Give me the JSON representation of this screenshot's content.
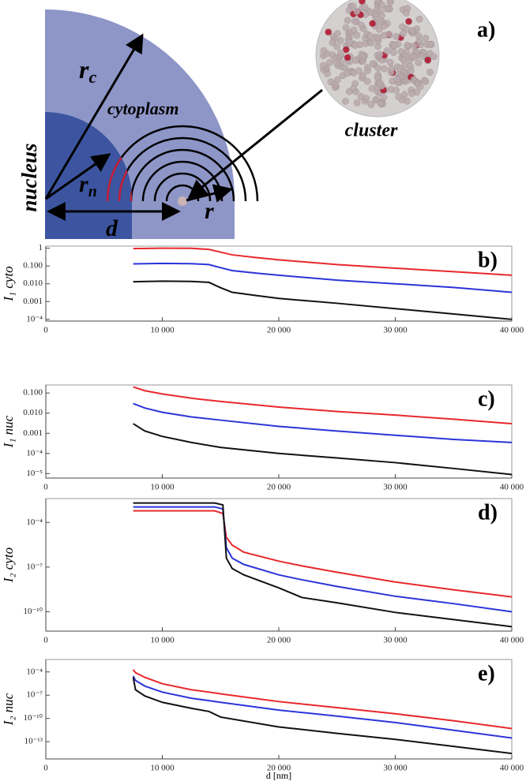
{
  "diagram": {
    "panel_label": "a)",
    "rc": {
      "text": "r",
      "sub": "c"
    },
    "cytoplasm": "cytoplasm",
    "nucleus": "nucleus",
    "rn": {
      "text": "r",
      "sub": "n"
    },
    "d": "d",
    "r": "r",
    "cluster": "cluster"
  },
  "chart_data": [
    {
      "type": "line",
      "panel_label": "b)",
      "y_label": "I₁ cyto",
      "log_y": true,
      "x": [
        7500,
        10000,
        12500,
        14000,
        15000,
        16000,
        18000,
        20000,
        25000,
        30000,
        35000,
        40000
      ],
      "series": [
        {
          "color": "#e8282b",
          "values": [
            0.95,
            1.0,
            0.98,
            0.85,
            0.6,
            0.42,
            0.3,
            0.22,
            0.12,
            0.075,
            0.048,
            0.03
          ]
        },
        {
          "color": "#2b35d8",
          "values": [
            0.13,
            0.14,
            0.135,
            0.12,
            0.08,
            0.055,
            0.04,
            0.03,
            0.016,
            0.01,
            0.0062,
            0.0033
          ]
        },
        {
          "color": "#111111",
          "values": [
            0.013,
            0.014,
            0.0135,
            0.012,
            0.006,
            0.0033,
            0.0022,
            0.0015,
            0.0008,
            0.0004,
            0.0002,
            0.0001
          ]
        }
      ],
      "xlim": [
        0,
        40000
      ],
      "ylim": [
        8e-05,
        1.3
      ],
      "xticks": [
        0,
        {
          "value": 10000,
          "label": "10 000"
        },
        {
          "value": 20000,
          "label": "20 000"
        },
        {
          "value": 30000,
          "label": "30 000"
        },
        {
          "value": 40000,
          "label": "40 000"
        }
      ],
      "yticks": [
        1,
        {
          "value": 0.1,
          "label": "0.100"
        },
        {
          "value": 0.01,
          "label": "0.010"
        },
        0.001,
        {
          "value": 0.0001,
          "label": "10⁻⁴"
        }
      ]
    },
    {
      "type": "line",
      "panel_label": "c)",
      "y_label": "I₁ nuc",
      "log_y": true,
      "x": [
        7500,
        8500,
        10000,
        12500,
        15000,
        20000,
        25000,
        30000,
        35000,
        40000
      ],
      "series": [
        {
          "color": "#e8282b",
          "values": [
            0.2,
            0.13,
            0.09,
            0.055,
            0.038,
            0.02,
            0.012,
            0.008,
            0.005,
            0.003
          ]
        },
        {
          "color": "#2b35d8",
          "values": [
            0.03,
            0.018,
            0.011,
            0.0065,
            0.0045,
            0.0022,
            0.0013,
            0.0008,
            0.0005,
            0.00035
          ]
        },
        {
          "color": "#111111",
          "values": [
            0.003,
            0.0013,
            0.0007,
            0.00035,
            0.0002,
            0.0001,
            6e-05,
            3.5e-05,
            1.8e-05,
            9e-06
          ]
        }
      ],
      "xlim": [
        0,
        40000
      ],
      "ylim": [
        6e-06,
        0.25
      ],
      "xticks": [
        0,
        {
          "value": 10000,
          "label": "10 000"
        },
        {
          "value": 20000,
          "label": "20 000"
        },
        {
          "value": 30000,
          "label": "30 000"
        },
        {
          "value": 40000,
          "label": "40 000"
        }
      ],
      "yticks": [
        {
          "value": 0.1,
          "label": "0.100"
        },
        {
          "value": 0.01,
          "label": "0.010"
        },
        0.001,
        {
          "value": 0.0001,
          "label": "10⁻⁴"
        },
        {
          "value": 1e-05,
          "label": "10⁻⁵"
        }
      ]
    },
    {
      "type": "line",
      "panel_label": "d)",
      "y_label": "I₂ cyto",
      "log_y": true,
      "x": [
        7500,
        14500,
        15200,
        15500,
        16000,
        17000,
        20000,
        22000,
        25000,
        30000,
        35000,
        40000
      ],
      "series": [
        {
          "color": "#e8282b",
          "values": [
            0.0006,
            0.0006,
            0.0004,
            1e-05,
            3e-06,
            1e-06,
            2.5e-07,
            1.2e-07,
            4.5e-08,
            1e-08,
            3e-09,
            1e-09
          ]
        },
        {
          "color": "#2b35d8",
          "values": [
            0.0011,
            0.0011,
            0.0008,
            2e-06,
            4e-07,
            1.5e-07,
            3e-08,
            1.4e-08,
            5e-09,
            1.1e-09,
            3.5e-10,
            1e-10
          ]
        },
        {
          "color": "#111111",
          "values": [
            0.002,
            0.002,
            0.0015,
            4e-07,
            8e-08,
            3e-08,
            4e-09,
            9e-10,
            4e-10,
            9e-11,
            3e-11,
            1e-11
          ]
        }
      ],
      "xlim": [
        0,
        40000
      ],
      "ylim": [
        5e-12,
        0.004
      ],
      "xticks": [
        0,
        {
          "value": 10000,
          "label": "10 000"
        },
        {
          "value": 20000,
          "label": "20 000"
        },
        {
          "value": 30000,
          "label": "30 000"
        },
        {
          "value": 40000,
          "label": "40 000"
        }
      ],
      "yticks": [
        {
          "value": 0.0001,
          "label": "10⁻⁴"
        },
        {
          "value": 1e-07,
          "label": "10⁻⁷"
        },
        {
          "value": 1e-10,
          "label": "10⁻¹⁰"
        }
      ]
    },
    {
      "type": "line",
      "panel_label": "e)",
      "y_label": "I₂ nuc",
      "x_label": "d [nm]",
      "log_y": true,
      "x": [
        7500,
        7700,
        8500,
        10000,
        12500,
        14000,
        15000,
        20000,
        25000,
        30000,
        35000,
        40000
      ],
      "series": [
        {
          "color": "#e8282b",
          "values": [
            0.0002,
            8e-05,
            2e-05,
            3e-06,
            5e-07,
            2.5e-07,
            1.5e-07,
            1.5e-08,
            2.5e-09,
            4e-10,
            5e-11,
            5e-12
          ]
        },
        {
          "color": "#2b35d8",
          "values": [
            3e-05,
            8e-06,
            1.5e-06,
            2.5e-07,
            4e-08,
            2e-08,
            1.2e-08,
            1.2e-09,
            2e-10,
            3e-11,
            3e-12,
            3e-13
          ]
        },
        {
          "color": "#111111",
          "values": [
            2e-05,
            5e-07,
            8e-08,
            1.2e-08,
            2e-09,
            8e-10,
            1.5e-10,
            8e-12,
            1.2e-12,
            2e-13,
            2.5e-14,
            3e-15
          ]
        }
      ],
      "xlim": [
        0,
        40000
      ],
      "ylim": [
        6e-16,
        0.004
      ],
      "xticks": [
        0,
        {
          "value": 10000,
          "label": "10 000"
        },
        {
          "value": 20000,
          "label": "20 000"
        },
        {
          "value": 30000,
          "label": "30 000"
        },
        {
          "value": 40000,
          "label": "40 000"
        }
      ],
      "yticks": [
        {
          "value": 0.0001,
          "label": "10⁻⁴"
        },
        {
          "value": 1e-07,
          "label": "10⁻⁷"
        },
        {
          "value": 1e-10,
          "label": "10⁻¹⁰"
        },
        {
          "value": 1e-13,
          "label": "10⁻¹³"
        }
      ]
    }
  ]
}
